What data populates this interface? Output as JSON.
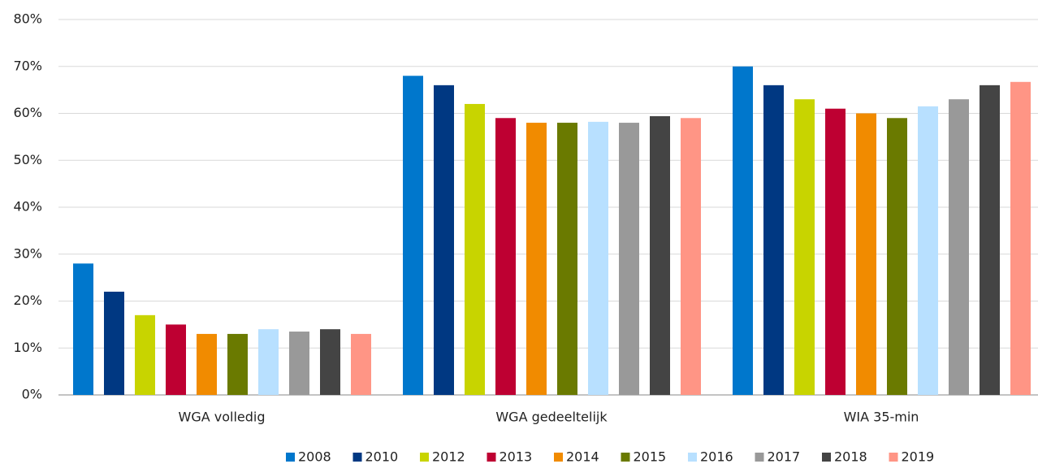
{
  "chart_data": {
    "type": "bar",
    "categories": [
      "WGA volledig",
      "WGA gedeeltelijk",
      "WIA 35-min"
    ],
    "series": [
      {
        "name": "2008",
        "color": "#0077cc",
        "values": [
          28,
          68,
          70
        ]
      },
      {
        "name": "2010",
        "color": "#003882",
        "values": [
          22,
          66,
          66
        ]
      },
      {
        "name": "2012",
        "color": "#c8d400",
        "values": [
          17,
          62,
          63
        ]
      },
      {
        "name": "2013",
        "color": "#be0032",
        "values": [
          15,
          59,
          61
        ]
      },
      {
        "name": "2014",
        "color": "#f18b00",
        "values": [
          13,
          58,
          60
        ]
      },
      {
        "name": "2015",
        "color": "#6a7a00",
        "values": [
          13,
          58,
          59
        ]
      },
      {
        "name": "2016",
        "color": "#b8e0ff",
        "values": [
          14,
          58.2,
          61.5
        ]
      },
      {
        "name": "2017",
        "color": "#999999",
        "values": [
          13.5,
          58,
          63
        ]
      },
      {
        "name": "2018",
        "color": "#444444",
        "values": [
          14,
          59.4,
          66
        ]
      },
      {
        "name": "2019",
        "color": "#ff9585",
        "values": [
          13,
          59,
          66.7
        ]
      }
    ],
    "ylim": [
      0,
      80
    ],
    "yticks": [
      {
        "value": 0,
        "label": "0%"
      },
      {
        "value": 10,
        "label": "10%"
      },
      {
        "value": 20,
        "label": "20%"
      },
      {
        "value": 30,
        "label": "30%"
      },
      {
        "value": 40,
        "label": "40%"
      },
      {
        "value": 50,
        "label": "50%"
      },
      {
        "value": 60,
        "label": "60%"
      },
      {
        "value": 70,
        "label": "70%"
      },
      {
        "value": 80,
        "label": "80%"
      }
    ],
    "grid": true,
    "legend": "bottom"
  }
}
